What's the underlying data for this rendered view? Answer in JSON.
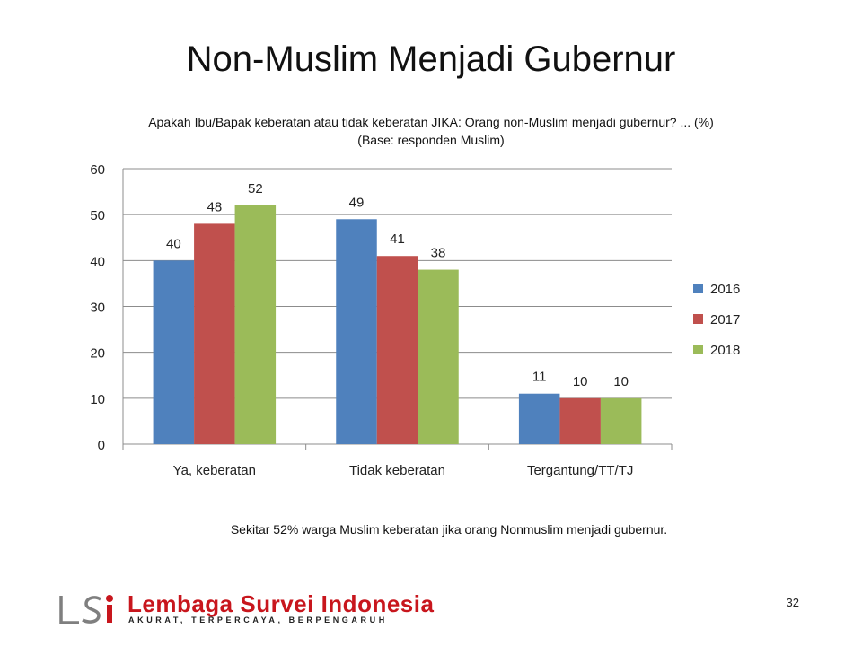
{
  "slide": {
    "title": "Non-Muslim Menjadi Gubernur",
    "subtitle_line1": "Apakah Ibu/Bapak keberatan atau tidak keberatan JIKA: Orang non-Muslim menjadi gubernur? ... (%)",
    "subtitle_line2": "(Base: responden Muslim)",
    "footnote": "Sekitar 52% warga Muslim keberatan jika orang Nonmuslim menjadi gubernur.",
    "page_number": "32"
  },
  "logo": {
    "name": "Lembaga Survei Indonesia",
    "tagline": "AKURAT, TERPERCAYA, BERPENGARUH",
    "mark_text": "LSI",
    "color": "#c8161d"
  },
  "chart_data": {
    "type": "bar",
    "title": "",
    "xlabel": "",
    "ylabel": "",
    "categories": [
      "Ya, keberatan",
      "Tidak keberatan",
      "Tergantung/TT/TJ"
    ],
    "series": [
      {
        "name": "2016",
        "values": [
          40,
          49,
          11
        ],
        "color": "#4f81bd"
      },
      {
        "name": "2017",
        "values": [
          48,
          41,
          10
        ],
        "color": "#c0504d"
      },
      {
        "name": "2018",
        "values": [
          52,
          38,
          10
        ],
        "color": "#9bbb59"
      }
    ],
    "data_labels": [
      [
        "40",
        "49",
        "11"
      ],
      [
        "48",
        "41",
        "10"
      ],
      [
        "52",
        "38",
        "10"
      ]
    ],
    "ylim": [
      0,
      60
    ],
    "yticks": [
      "0",
      "10",
      "20",
      "30",
      "40",
      "50",
      "60"
    ],
    "grid": true,
    "legend": "right"
  }
}
